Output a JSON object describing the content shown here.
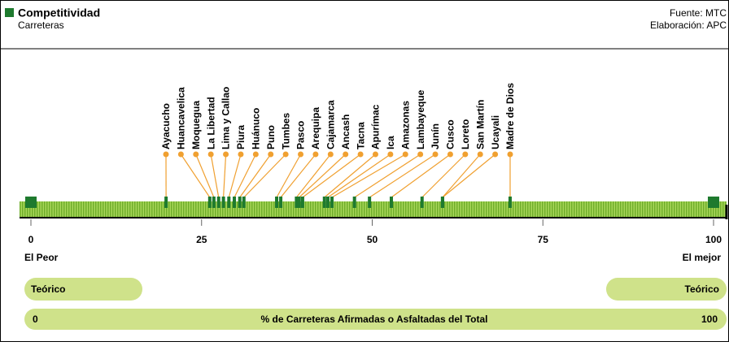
{
  "chart_data": {
    "type": "strip",
    "title": "Competitividad",
    "subtitle": "Carreteras",
    "source": "Fuente: MTC",
    "credit": "Elaboración: APC",
    "categories": [
      "Ayacucho",
      "Huancavelica",
      "Moquegua",
      "La Libertad",
      "Lima y Callao",
      "Piura",
      "Huánuco",
      "Puno",
      "Tumbes",
      "Pasco",
      "Arequipa",
      "Cajamarca",
      "Ancash",
      "Tacna",
      "Apurímac",
      "Ica",
      "Amazonas",
      "Lambayeque",
      "Junín",
      "Cusco",
      "Loreto",
      "San Martín",
      "Ucayali",
      "Madre de Dios"
    ],
    "values": [
      19.8,
      26.2,
      26.8,
      27.5,
      28.2,
      29.0,
      29.8,
      30.6,
      31.2,
      36.0,
      36.6,
      38.9,
      39.3,
      39.8,
      43.0,
      43.5,
      44.1,
      47.4,
      49.6,
      52.8,
      57.3,
      60.3,
      60.3,
      70.2
    ],
    "xlim": [
      0,
      100
    ],
    "xticks": [
      0,
      25,
      50,
      75,
      100
    ],
    "min_label": "El Peor",
    "max_label": "El mejor",
    "reference_labels": [
      "Teórico",
      "Teórico"
    ],
    "xlabel": "% de Carreteras Afirmadas o Asfaltadas del Total",
    "color": "#1e7a2e",
    "strip_color": "#8cc63f",
    "leader_color": "#f0a030",
    "pill_color": "#cfe28a"
  }
}
